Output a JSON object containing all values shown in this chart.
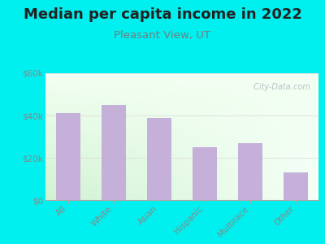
{
  "title": "Median per capita income in 2022",
  "subtitle": "Pleasant View, UT",
  "categories": [
    "All",
    "White",
    "Asian",
    "Hispanic",
    "Multirace",
    "Other"
  ],
  "values": [
    41000,
    45000,
    39000,
    25000,
    27000,
    13000
  ],
  "bar_color": "#c4b0d8",
  "background_color": "#00efef",
  "ylim": [
    0,
    60000
  ],
  "yticks": [
    0,
    20000,
    40000,
    60000
  ],
  "ytick_labels": [
    "$0",
    "$20k",
    "$40k",
    "$60k"
  ],
  "title_fontsize": 13,
  "subtitle_fontsize": 9.5,
  "subtitle_color": "#7a7a7a",
  "title_color": "#222222",
  "tick_color": "#888888",
  "watermark_text": " City-Data.com",
  "watermark_color": "#b0b8c0",
  "grid_color": "#dddddd"
}
